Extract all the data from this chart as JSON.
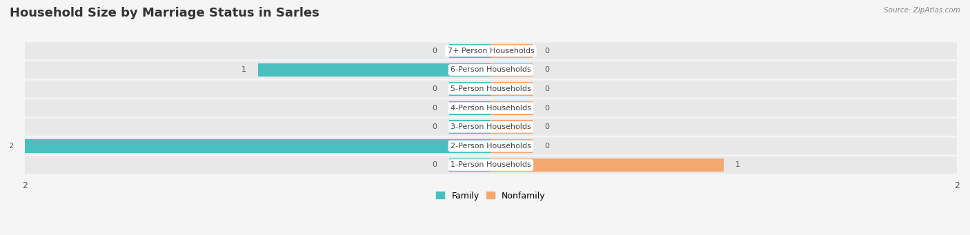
{
  "title": "Household Size by Marriage Status in Sarles",
  "source": "Source: ZipAtlas.com",
  "categories": [
    "7+ Person Households",
    "6-Person Households",
    "5-Person Households",
    "4-Person Households",
    "3-Person Households",
    "2-Person Households",
    "1-Person Households"
  ],
  "family": [
    0,
    1,
    0,
    0,
    0,
    2,
    0
  ],
  "nonfamily": [
    0,
    0,
    0,
    0,
    0,
    0,
    1
  ],
  "family_color": "#4BBFBF",
  "nonfamily_color": "#F5A870",
  "bg_row_color": "#E8E8E8",
  "bg_gap_color": "#F5F5F5",
  "xlim": [
    -2,
    2
  ],
  "x_ticks_left": -2,
  "x_ticks_right": 2,
  "stub_size": 0.18,
  "bar_height": 0.72,
  "title_fontsize": 13,
  "label_fontsize": 8,
  "value_fontsize": 8,
  "tick_fontsize": 9,
  "legend_fontsize": 9
}
